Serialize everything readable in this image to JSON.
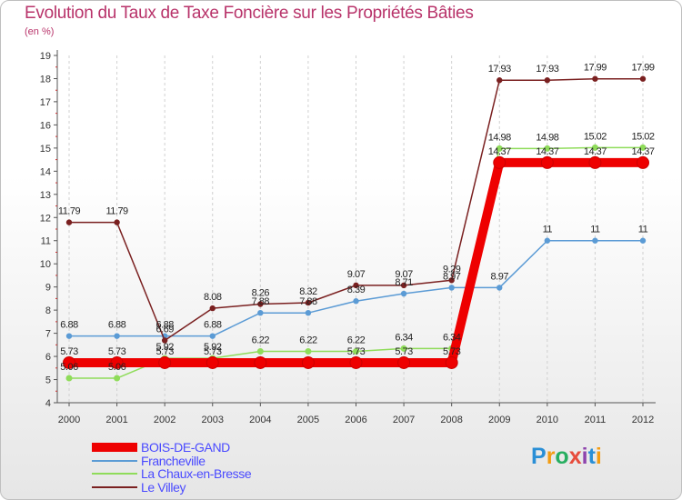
{
  "chart_data": {
    "type": "line",
    "title": "Evolution du Taux de Taxe Foncière sur les Propriétés Bâties",
    "ylabel": "(en %)",
    "xlabel": "",
    "x": [
      "2000",
      "2001",
      "2002",
      "2003",
      "2004",
      "2005",
      "2006",
      "2007",
      "2008",
      "2009",
      "2010",
      "2011",
      "2012"
    ],
    "ylim": [
      4,
      19
    ],
    "yticks": [
      4,
      5,
      6,
      7,
      8,
      9,
      10,
      11,
      12,
      13,
      14,
      15,
      16,
      17,
      18,
      19
    ],
    "grid": "x-dashed",
    "legend_position": "bottom-left",
    "series": [
      {
        "name": "BOIS-DE-GAND",
        "color": "#ee0000",
        "values": [
          5.73,
          5.73,
          5.73,
          5.73,
          5.73,
          5.73,
          5.73,
          5.73,
          5.73,
          14.37,
          14.37,
          14.37,
          14.37
        ]
      },
      {
        "name": "Francheville",
        "color": "#5b9bd5",
        "values": [
          6.88,
          6.88,
          6.88,
          6.88,
          7.88,
          7.88,
          8.39,
          8.71,
          8.97,
          8.97,
          11,
          11,
          11
        ]
      },
      {
        "name": "La Chaux-en-Bresse",
        "color": "#8fdc5a",
        "values": [
          5.06,
          5.06,
          5.92,
          5.92,
          6.22,
          6.22,
          6.22,
          6.34,
          6.34,
          14.98,
          14.98,
          15.02,
          15.02
        ]
      },
      {
        "name": "Le Villey",
        "color": "#7a2020",
        "values": [
          11.79,
          11.79,
          6.69,
          8.08,
          8.26,
          8.32,
          9.07,
          9.07,
          9.29,
          17.93,
          17.93,
          17.99,
          17.99
        ]
      }
    ],
    "data_labels": [
      {
        "series": 0,
        "points": [
          0,
          1,
          2,
          3,
          6,
          7,
          8,
          9,
          10,
          11,
          12
        ],
        "texts": [
          "5.73",
          "5.73",
          "5.73",
          "5.73",
          "5.73",
          "5.73",
          "5.73",
          "14.37",
          "14.37",
          "14.37",
          "14.37"
        ]
      },
      {
        "series": 1,
        "points": [
          0,
          1,
          2,
          3,
          4,
          5,
          6,
          7,
          8,
          9,
          10,
          11,
          12
        ],
        "texts": [
          "6.88",
          "6.88",
          "6.88",
          "6.88",
          "7.88",
          "7.88",
          "8.39",
          "8.71",
          "8.97",
          "8.97",
          "11",
          "11",
          "11"
        ]
      },
      {
        "series": 2,
        "points": [
          0,
          1,
          2,
          3,
          4,
          5,
          6,
          7,
          8,
          9,
          10,
          11,
          12
        ],
        "texts": [
          "5.06",
          "5.06",
          "5.92",
          "5.92",
          "6.22",
          "6.22",
          "6.22",
          "6.34",
          "6.34",
          "14.98",
          "14.98",
          "15.02",
          "15.02"
        ]
      },
      {
        "series": 3,
        "points": [
          0,
          1,
          2,
          3,
          4,
          5,
          6,
          7,
          8,
          9,
          10,
          11,
          12
        ],
        "texts": [
          "11.79",
          "11.79",
          "6.69",
          "8.08",
          "8.26",
          "8.32",
          "9.07",
          "9.07",
          "9.29",
          "17.93",
          "17.93",
          "17.99",
          "17.99"
        ]
      }
    ]
  },
  "brand": {
    "letters": [
      "P",
      "r",
      "o",
      "x",
      "i",
      "t",
      "i"
    ],
    "colors": [
      "#2a8fd6",
      "#f39c12",
      "#27ae60",
      "#e74c3c",
      "#8e44ad",
      "#2a8fd6",
      "#f39c12"
    ]
  }
}
